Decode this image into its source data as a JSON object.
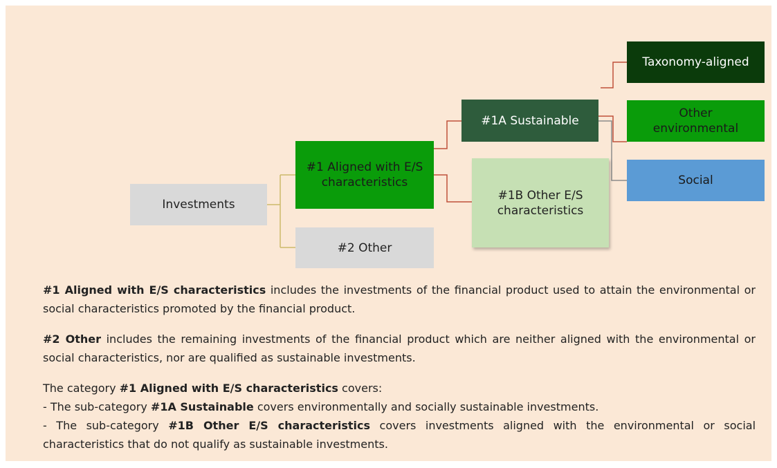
{
  "nodes": [
    {
      "label": "Investments"
    },
    {
      "label": "#1 Aligned with E/S characteristics"
    },
    {
      "label": "#2 Other"
    },
    {
      "label": "#1A Sustainable"
    },
    {
      "label": "#1B Other E/S characteristics"
    },
    {
      "label": "Taxonomy-aligned"
    },
    {
      "label": "Other environmental"
    },
    {
      "label": "Social"
    }
  ],
  "paragraphs": [
    [
      [
        {
          "bold": "#1 Aligned with E/S characteristics"
        },
        {
          "text": " includes the investments of the financial product used to attain the environmental or social characteristics promoted by the financial product."
        }
      ]
    ],
    [
      [
        {
          "bold": "#2 Other"
        },
        {
          "text": " includes the remaining investments of the financial product which are neither aligned with the environmental or social characteristics, nor are qualified as sustainable investments."
        }
      ]
    ],
    [
      [
        {
          "text": "The category "
        },
        {
          "bold": "#1 Aligned with E/S characteristics"
        },
        {
          "text": " covers:"
        }
      ],
      [
        {
          "text": "- The sub-category "
        },
        {
          "bold": "#1A Sustainable"
        },
        {
          "text": " covers environmentally and socially sustainable investments."
        }
      ],
      [
        {
          "text": "- The sub-category "
        },
        {
          "bold": "#1B Other E/S characteristics"
        },
        {
          "text": " covers investments aligned with the environmental or social characteristics that do not qualify as sustainable investments."
        }
      ]
    ]
  ]
}
